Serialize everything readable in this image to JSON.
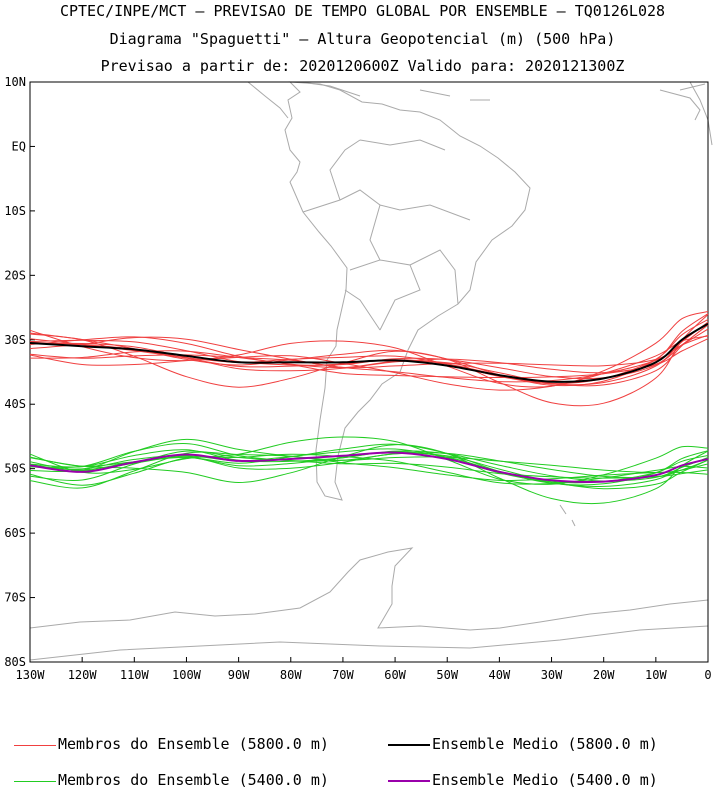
{
  "header": {
    "line1": "CPTEC/INPE/MCT — PREVISAO DE TEMPO GLOBAL POR ENSEMBLE — TQ0126L028",
    "line2": "Diagrama \"Spaguetti\" — Altura Geopotencial (m) (500 hPa)",
    "line3": "Previsao a partir de: 2020120600Z  Valido para: 2020121300Z"
  },
  "axes": {
    "lat_labels": [
      "10N",
      "EQ",
      "10S",
      "20S",
      "30S",
      "40S",
      "50S",
      "60S",
      "70S",
      "80S"
    ],
    "lat_values": [
      10,
      0,
      -10,
      -20,
      -30,
      -40,
      -50,
      -60,
      -70,
      -80
    ],
    "lon_labels": [
      "130W",
      "120W",
      "110W",
      "100W",
      "90W",
      "80W",
      "70W",
      "60W",
      "50W",
      "40W",
      "30W",
      "20W",
      "10W",
      "0"
    ],
    "lon_values": [
      -130,
      -120,
      -110,
      -100,
      -90,
      -80,
      -70,
      -60,
      -50,
      -40,
      -30,
      -20,
      -10,
      0
    ],
    "lon_range": [
      -130,
      0
    ],
    "lat_range": [
      -80,
      10
    ]
  },
  "colors": {
    "members_5800": "#f04040",
    "mean_5800": "#000000",
    "members_5400": "#22cc22",
    "mean_5400": "#9900aa",
    "coast": "#aaaaaa"
  },
  "legend": {
    "members_5800": "Membros do Ensemble (5800.0 m)",
    "mean_5800": "Ensemble Medio (5800.0 m)",
    "members_5400": "Membros do Ensemble (5400.0 m)",
    "mean_5400": "Ensemble Medio (5400.0 m)"
  },
  "contours": {
    "lon": [
      -130,
      -120,
      -110,
      -100,
      -90,
      -80,
      -70,
      -60,
      -50,
      -40,
      -30,
      -20,
      -10,
      -5,
      0
    ],
    "mean_5800_lat": [
      -30.5,
      -31,
      -31.5,
      -32.5,
      -33.5,
      -33.5,
      -33.5,
      -33.2,
      -34,
      -35.5,
      -36.5,
      -36,
      -33.5,
      -30,
      -27.5
    ],
    "mean_5400_lat": [
      -49.5,
      -50.5,
      -49,
      -47.8,
      -48.8,
      -48.5,
      -48,
      -47.5,
      -48.5,
      -50.5,
      -51.8,
      -52,
      -51,
      -49.5,
      -48.5
    ],
    "members_5800_offsets": [
      0,
      1.2,
      -1.0,
      2.0,
      -2.2,
      0.6,
      -0.5,
      1.6,
      -1.5,
      2.6,
      -3.0,
      0.9,
      -1.8
    ],
    "members_5400_offsets": [
      0,
      1.0,
      -1.1,
      1.8,
      -1.6,
      0.5,
      -0.6,
      1.4,
      -2.0,
      2.3,
      -2.6,
      0.8,
      -1.3
    ]
  }
}
